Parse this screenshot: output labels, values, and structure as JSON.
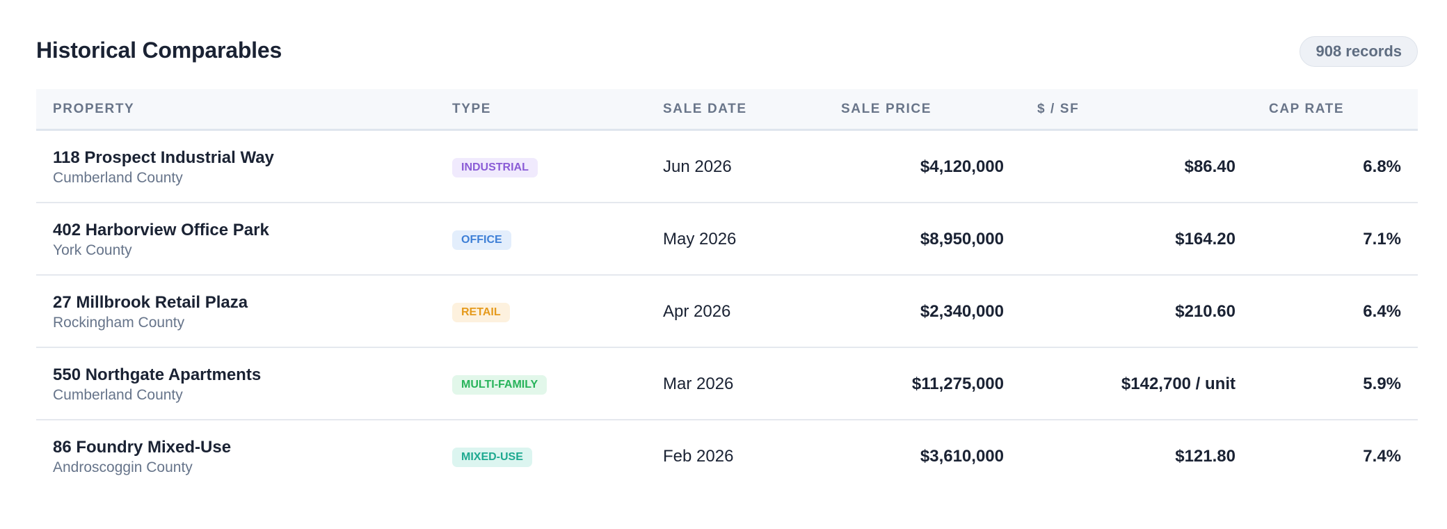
{
  "header": {
    "title": "Historical Comparables",
    "records": "908 records"
  },
  "columns": {
    "property": "PROPERTY",
    "type": "TYPE",
    "sale_date": "SALE DATE",
    "sale_price": "SALE PRICE",
    "psf": "$ / SF",
    "cap_rate": "CAP RATE"
  },
  "rows": [
    {
      "name": "118 Prospect Industrial Way",
      "county": "Cumberland County",
      "type": "INDUSTRIAL",
      "date": "Jun 2026",
      "price": "$4,120,000",
      "psf": "$86.40",
      "cap": "6.8%"
    },
    {
      "name": "402 Harborview Office Park",
      "county": "York County",
      "type": "OFFICE",
      "date": "May 2026",
      "price": "$8,950,000",
      "psf": "$164.20",
      "cap": "7.1%"
    },
    {
      "name": "27 Millbrook Retail Plaza",
      "county": "Rockingham County",
      "type": "RETAIL",
      "date": "Apr 2026",
      "price": "$2,340,000",
      "psf": "$210.60",
      "cap": "6.4%"
    },
    {
      "name": "550 Northgate Apartments",
      "county": "Cumberland County",
      "type": "MULTI-FAMILY",
      "date": "Mar 2026",
      "price": "$11,275,000",
      "psf": "$142,700 / unit",
      "cap": "5.9%"
    },
    {
      "name": "86 Foundry Mixed-Use",
      "county": "Androscoggin County",
      "type": "MIXED-USE",
      "date": "Feb 2026",
      "price": "$3,610,000",
      "psf": "$121.80",
      "cap": "7.4%"
    }
  ],
  "type_colors": {
    "INDUSTRIAL": "#8a5cd6",
    "OFFICE": "#3d7fd6",
    "RETAIL": "#e59a1c",
    "MULTI-FAMILY": "#27b35a",
    "MIXED-USE": "#1ea990"
  }
}
